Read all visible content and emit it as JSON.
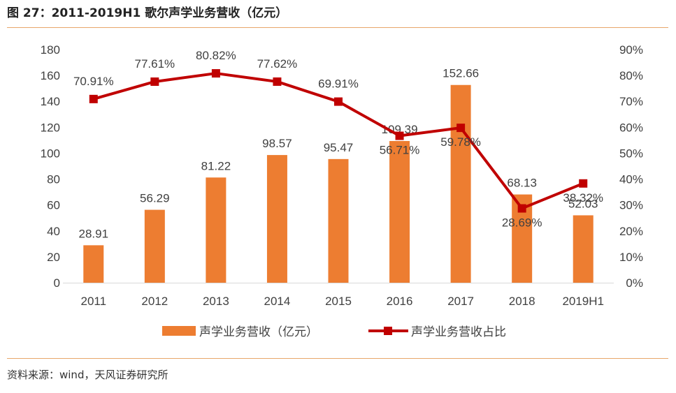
{
  "figure_title": "图 27：2011-2019H1 歌尔声学业务营收（亿元）",
  "source_note": "资料来源：wind，天风证券研究所",
  "colors": {
    "bar": "#ed7d31",
    "line": "#c00000",
    "axis_text": "#404040",
    "rule": "#e8a66a"
  },
  "chart_data": {
    "type": "bar",
    "categories": [
      "2011",
      "2012",
      "2013",
      "2014",
      "2015",
      "2016",
      "2017",
      "2018",
      "2019H1"
    ],
    "series": [
      {
        "name": "声学业务营收（亿元）",
        "type": "bar",
        "axis": "left",
        "values": [
          28.91,
          56.29,
          81.22,
          98.57,
          95.47,
          109.39,
          152.66,
          68.13,
          52.03
        ],
        "labels": [
          "28.91",
          "56.29",
          "81.22",
          "98.57",
          "95.47",
          "109.39",
          "152.66",
          "68.13",
          "52.03"
        ]
      },
      {
        "name": "声学业务营收占比",
        "type": "line",
        "axis": "right",
        "values": [
          70.91,
          77.61,
          80.82,
          77.62,
          69.91,
          56.71,
          59.78,
          28.69,
          38.32
        ],
        "labels": [
          "70.91%",
          "77.61%",
          "80.82%",
          "77.62%",
          "69.91%",
          "56.71%",
          "59.78%",
          "28.69%",
          "38.32%"
        ]
      }
    ],
    "y_left": {
      "min": 0,
      "max": 180,
      "ticks": [
        "0",
        "20",
        "40",
        "60",
        "80",
        "100",
        "120",
        "140",
        "160",
        "180"
      ]
    },
    "y_right": {
      "min": 0,
      "max": 90,
      "ticks": [
        "0%",
        "10%",
        "20%",
        "30%",
        "40%",
        "50%",
        "60%",
        "70%",
        "80%",
        "90%"
      ]
    },
    "grid": false,
    "legend_position": "bottom"
  }
}
